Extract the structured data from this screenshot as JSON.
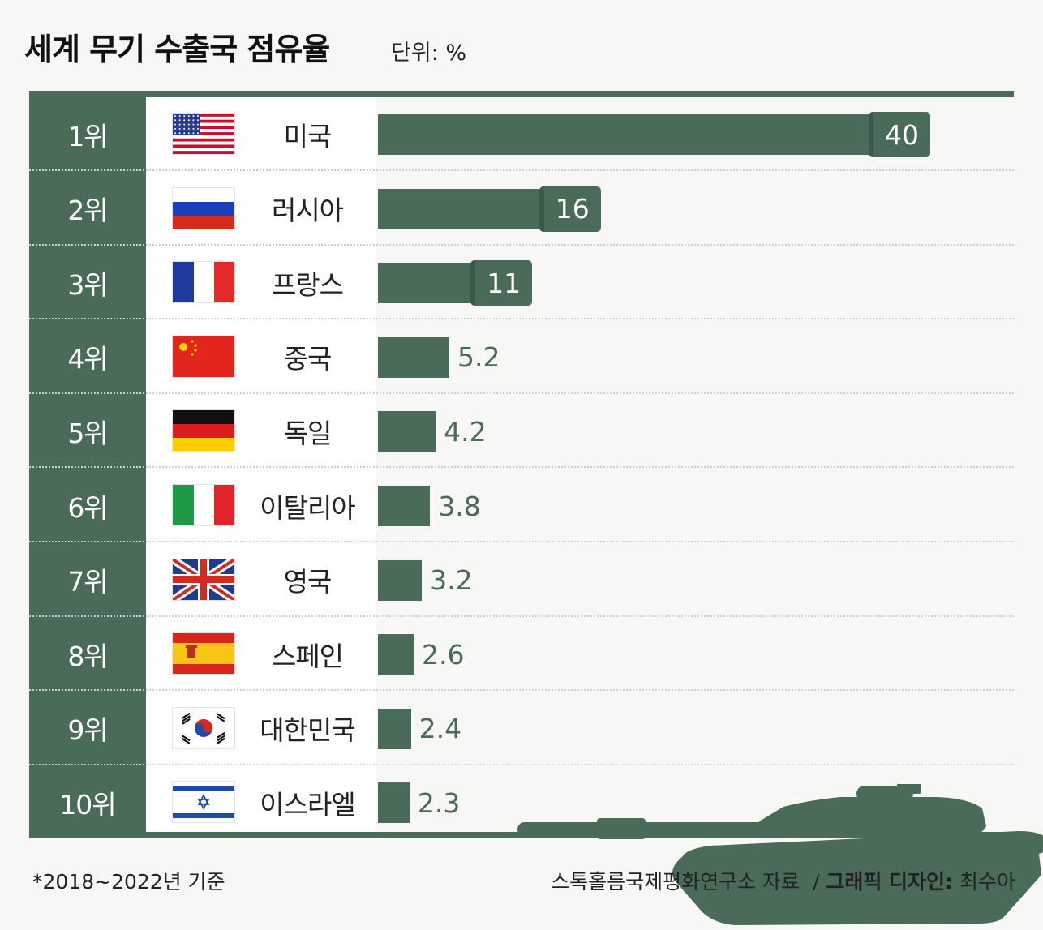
{
  "title": "세계 무기 수출국 점유율",
  "unit_label": "단위: %",
  "footnote": "*2018~2022년 기준",
  "credit": {
    "source": "스톡홀름국제평화연구소 자료",
    "separator": "/",
    "design_label": "그래픽 디자인:",
    "designer": "최수아"
  },
  "colors": {
    "accent": "#4a6b58",
    "background": "#f7f7f5"
  },
  "chart_data": {
    "type": "bar",
    "orientation": "horizontal",
    "title": "세계 무기 수출국 점유율",
    "unit": "%",
    "categories": [
      "미국",
      "러시아",
      "프랑스",
      "중국",
      "독일",
      "이탈리아",
      "영국",
      "스페인",
      "대한민국",
      "이스라엘"
    ],
    "ranks": [
      "1위",
      "2위",
      "3위",
      "4위",
      "5위",
      "6위",
      "7위",
      "8위",
      "9위",
      "10위"
    ],
    "values": [
      40,
      16,
      11,
      5.2,
      4.2,
      3.8,
      3.2,
      2.6,
      2.4,
      2.3
    ],
    "labels": [
      "40",
      "16",
      "11",
      "5.2",
      "4.2",
      "3.8",
      "3.2",
      "2.6",
      "2.4",
      "2.3"
    ],
    "flags": [
      "us-flag-icon",
      "russia-flag-icon",
      "france-flag-icon",
      "china-flag-icon",
      "germany-flag-icon",
      "italy-flag-icon",
      "uk-flag-icon",
      "spain-flag-icon",
      "korea-flag-icon",
      "israel-flag-icon"
    ],
    "xlim": [
      0,
      40
    ],
    "grid": false,
    "legend": "none"
  }
}
